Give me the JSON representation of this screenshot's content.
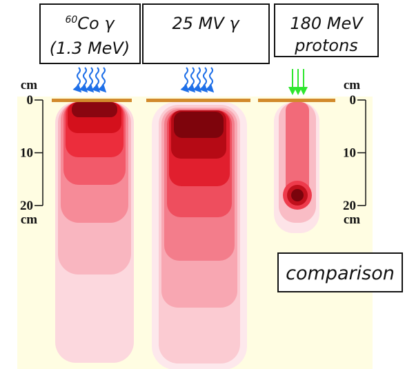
{
  "panels": [
    {
      "label_sup": "60",
      "label": "Co γ",
      "label_line2": "(1.3 MeV)"
    },
    {
      "label": "25 MV γ"
    },
    {
      "label": "180 MeV",
      "label_line2": "protons"
    }
  ],
  "axes": [
    {
      "unit_top": "cm",
      "ticks": [
        0,
        10,
        20
      ],
      "unit_bottom": "cm"
    },
    {
      "unit_top": "cm",
      "ticks": [
        0,
        10,
        20
      ],
      "unit_bottom": "cm"
    }
  ],
  "note": "comparison"
}
